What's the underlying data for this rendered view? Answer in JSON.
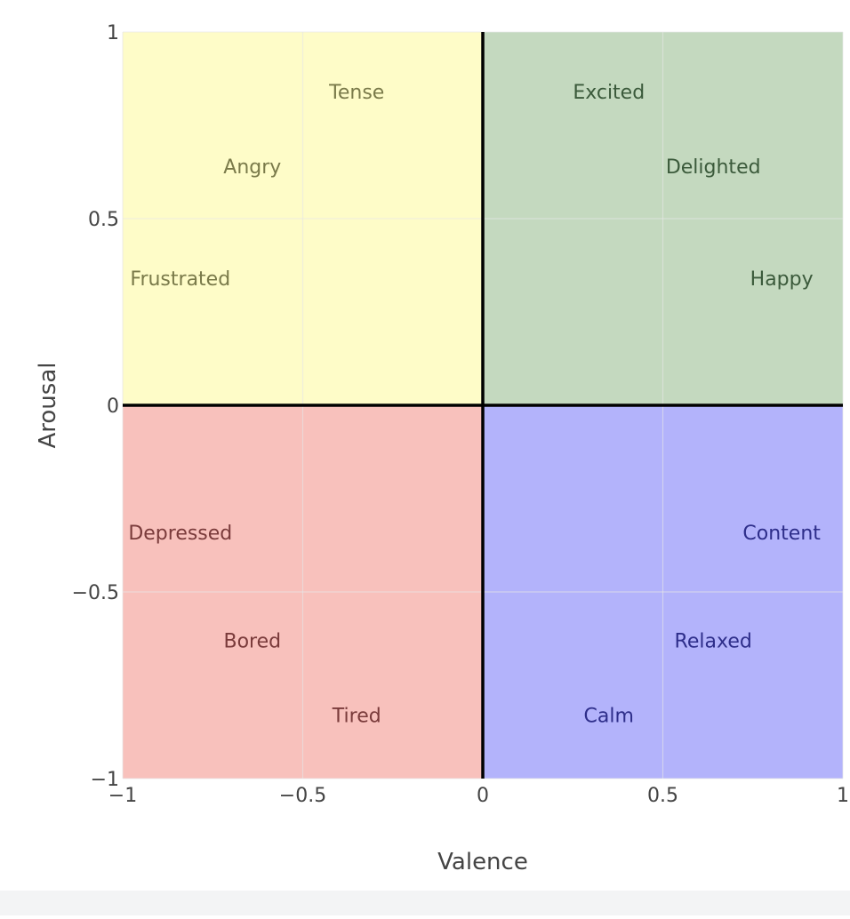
{
  "chart_data": {
    "type": "scatter",
    "title": "",
    "xlabel": "Valence",
    "ylabel": "Arousal",
    "xlim": [
      -1,
      1
    ],
    "ylim": [
      -1,
      1
    ],
    "x_ticks": [
      -1,
      -0.5,
      0,
      0.5,
      1
    ],
    "y_ticks": [
      -1,
      -0.5,
      0,
      0.5,
      1
    ],
    "x_tick_labels": [
      "−1",
      "−0.5",
      "0",
      "0.5",
      "1"
    ],
    "y_tick_labels": [
      "−1",
      "−0.5",
      "0",
      "0.5",
      "1"
    ],
    "grid": true,
    "quadrants": [
      {
        "x": [
          -1,
          0
        ],
        "y": [
          0,
          1
        ],
        "color": "#fefcc8"
      },
      {
        "x": [
          0,
          1
        ],
        "y": [
          0,
          1
        ],
        "color": "#c4d9bf"
      },
      {
        "x": [
          -1,
          0
        ],
        "y": [
          -1,
          0
        ],
        "color": "#f8c1bc"
      },
      {
        "x": [
          0,
          1
        ],
        "y": [
          -1,
          0
        ],
        "color": "#b3b3fb"
      }
    ],
    "labels": [
      {
        "text": "Tense",
        "x": -0.35,
        "y": 0.84,
        "color": "#7a7a4a"
      },
      {
        "text": "Angry",
        "x": -0.64,
        "y": 0.64,
        "color": "#7a7a4a"
      },
      {
        "text": "Frustrated",
        "x": -0.84,
        "y": 0.34,
        "color": "#7a7a4a"
      },
      {
        "text": "Excited",
        "x": 0.35,
        "y": 0.84,
        "color": "#3b5a3b"
      },
      {
        "text": "Delighted",
        "x": 0.64,
        "y": 0.64,
        "color": "#3b5a3b"
      },
      {
        "text": "Happy",
        "x": 0.83,
        "y": 0.34,
        "color": "#3b5a3b"
      },
      {
        "text": "Depressed",
        "x": -0.84,
        "y": -0.34,
        "color": "#7a3b3b"
      },
      {
        "text": "Bored",
        "x": -0.64,
        "y": -0.63,
        "color": "#7a3b3b"
      },
      {
        "text": "Tired",
        "x": -0.35,
        "y": -0.83,
        "color": "#7a3b3b"
      },
      {
        "text": "Content",
        "x": 0.83,
        "y": -0.34,
        "color": "#2e2e8a"
      },
      {
        "text": "Relaxed",
        "x": 0.64,
        "y": -0.63,
        "color": "#2e2e8a"
      },
      {
        "text": "Calm",
        "x": 0.35,
        "y": -0.83,
        "color": "#2e2e8a"
      }
    ],
    "axis_line_color": "#000000",
    "grid_color": "#e6e6e6",
    "tick_label_color": "#444444"
  }
}
